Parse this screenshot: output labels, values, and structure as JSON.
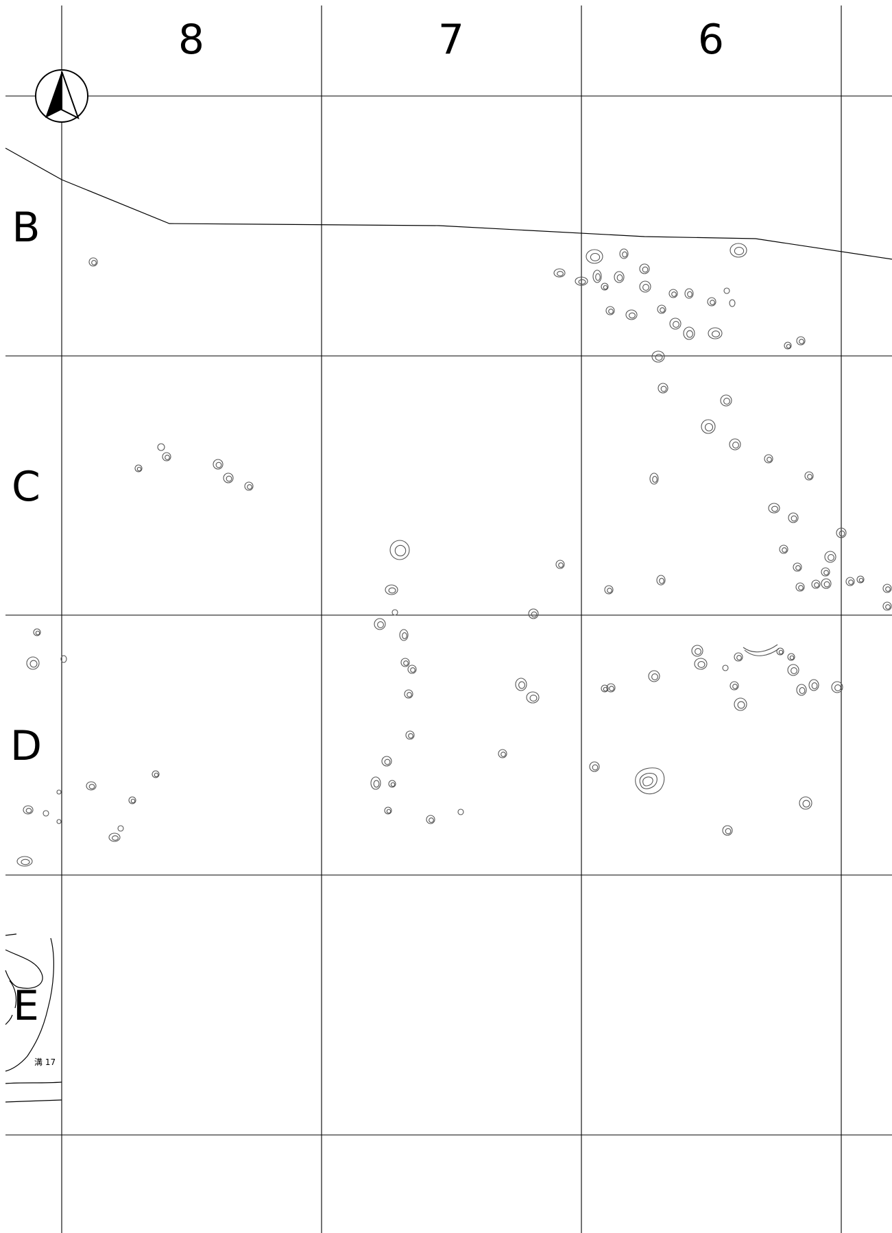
{
  "map": {
    "column_labels": [
      "8",
      "7",
      "6"
    ],
    "row_labels": [
      "B",
      "C",
      "D",
      "E"
    ],
    "feature_label": "溝 17",
    "north_arrow_icon": "north-arrow-icon"
  }
}
